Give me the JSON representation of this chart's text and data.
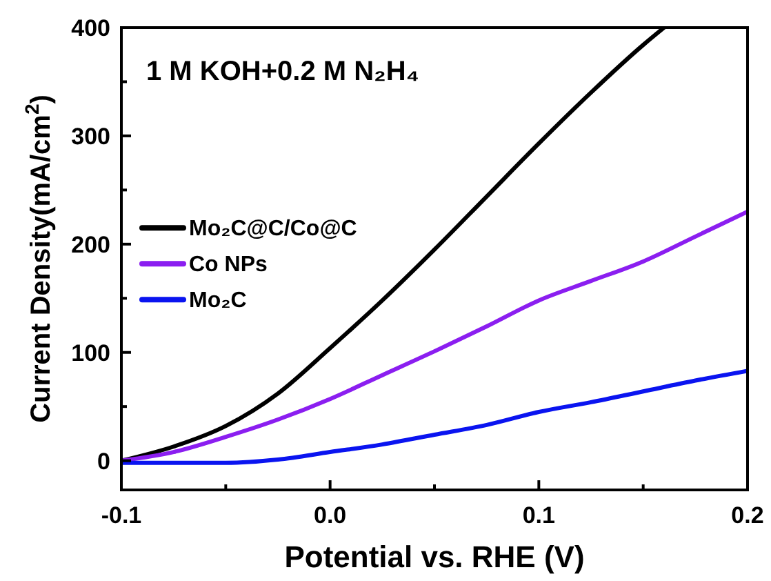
{
  "chart_data": {
    "type": "line",
    "xlabel": "Potential vs. RHE (V)",
    "ylabel": "Current Density(mA/cm$^{2}$)",
    "annotations": [
      "1 M KOH+0.2 M N₂H₄"
    ],
    "xlim": [
      -0.1,
      0.2
    ],
    "ylim": [
      -27,
      400
    ],
    "xticks": [
      -0.1,
      {
        "value": -0.05,
        "label": null
      },
      {
        "value": 0,
        "label": "0.0"
      },
      {
        "value": 0.05,
        "label": null
      },
      0.1,
      {
        "value": 0.15,
        "label": null
      },
      0.2
    ],
    "yticks": [
      0,
      {
        "value": 50,
        "label": null
      },
      100,
      {
        "value": 150,
        "label": null
      },
      200,
      {
        "value": 250,
        "label": null
      },
      300,
      {
        "value": 350,
        "label": null
      },
      400
    ],
    "legend": "left",
    "grid": false,
    "line_style": "solid",
    "x": [
      -0.1,
      -0.075,
      -0.05,
      -0.025,
      0.0,
      0.025,
      0.05,
      0.075,
      0.1,
      0.125,
      0.15,
      0.175,
      0.2
    ],
    "series": [
      {
        "name": "Mo₂C@C/Co@C",
        "color": "#000000",
        "x": [
          -0.1,
          -0.075,
          -0.05,
          -0.025,
          0.0,
          0.025,
          0.05,
          0.075,
          0.1,
          0.125,
          0.15,
          0.16
        ],
        "values": [
          0,
          13,
          32,
          62,
          104,
          148,
          195,
          244,
          293,
          340,
          384,
          400
        ]
      },
      {
        "name": "Co NPs",
        "color": "#8b1ef0",
        "values": [
          0,
          8,
          22,
          38,
          57,
          79,
          101,
          124,
          148,
          166,
          184,
          207,
          230
        ]
      },
      {
        "name": "Mo₂C",
        "color": "#0a14f0",
        "values": [
          -2,
          -2,
          -2,
          1,
          8,
          15,
          24,
          33,
          45,
          54,
          64,
          74,
          83
        ]
      }
    ]
  }
}
